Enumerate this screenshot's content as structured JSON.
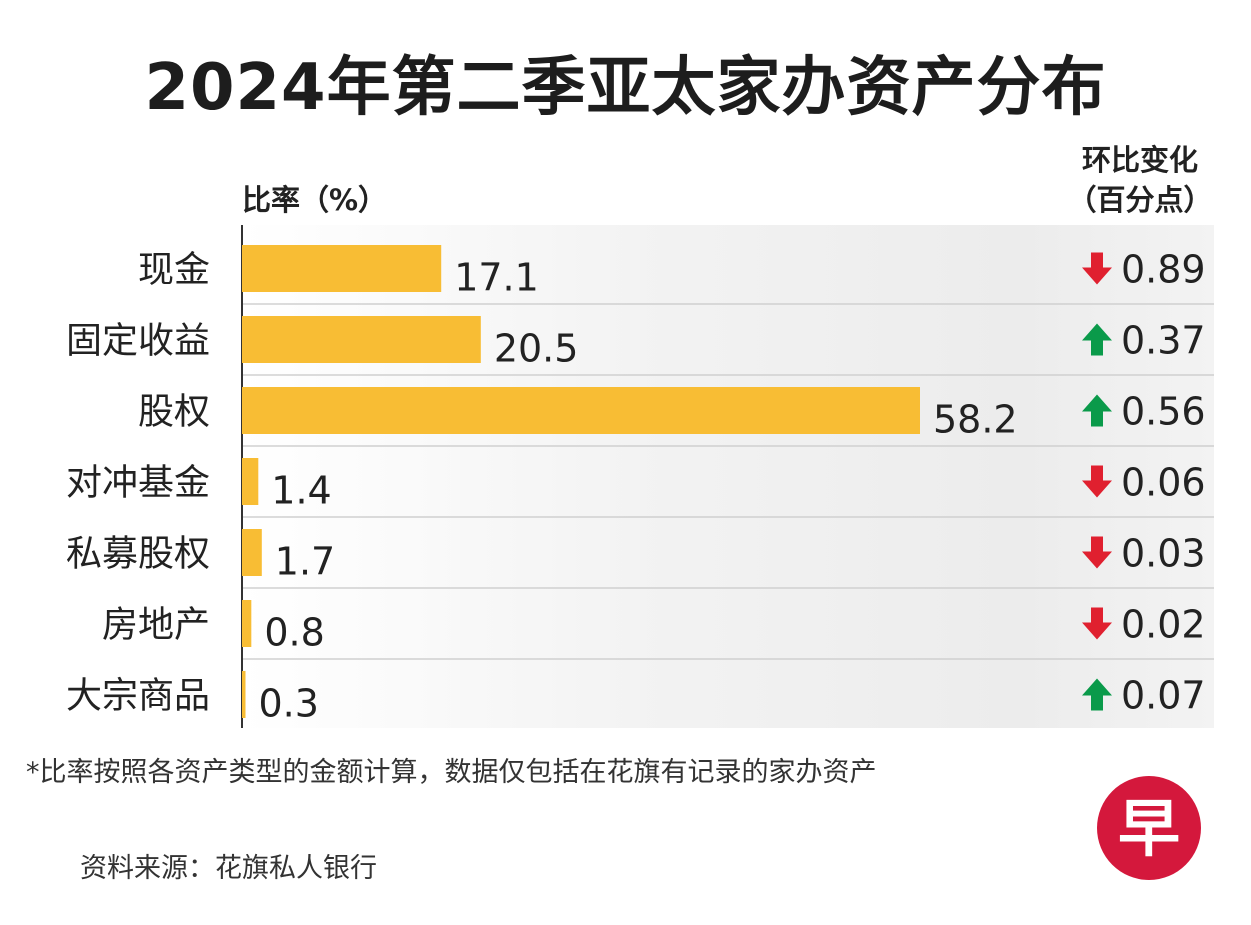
{
  "title": "2024年第二季亚太家办资产分布",
  "ylabel": "比率（%）",
  "change_header": [
    "环比变化",
    "（百分点）"
  ],
  "footnote": "*比率按照各资产类型的金额计算，数据仅包括在花旗有记录的家办资产",
  "source": "资料来源：花旗私人银行",
  "logo_text": "早",
  "colors": {
    "bar": "#f8bd34",
    "up": "#0a9a4a",
    "down": "#e0202f",
    "logo": "#d4183c"
  },
  "chart_data": {
    "type": "bar",
    "orientation": "horizontal",
    "ylabel": "比率（%）",
    "categories": [
      "现金",
      "固定收益",
      "股权",
      "对冲基金",
      "私募股权",
      "房地产",
      "大宗商品"
    ],
    "values": [
      17.1,
      20.5,
      58.2,
      1.4,
      1.7,
      0.8,
      0.3
    ],
    "value_labels": [
      "17.1",
      "20.5",
      "58.2",
      "1.4",
      "1.7",
      "0.8",
      "0.3"
    ],
    "changes": [
      {
        "direction": "down",
        "value": "0.89"
      },
      {
        "direction": "up",
        "value": "0.37"
      },
      {
        "direction": "up",
        "value": "0.56"
      },
      {
        "direction": "down",
        "value": "0.06"
      },
      {
        "direction": "down",
        "value": "0.03"
      },
      {
        "direction": "down",
        "value": "0.02"
      },
      {
        "direction": "up",
        "value": "0.07"
      }
    ],
    "xlim": [
      0,
      60
    ],
    "grid": false
  }
}
